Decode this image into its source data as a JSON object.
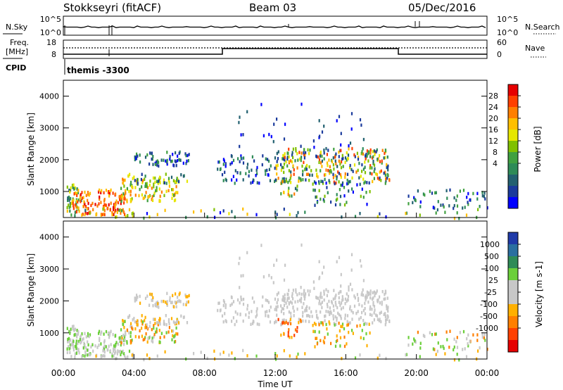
{
  "header": {
    "station": "Stokkseyri (fitACF)",
    "beam": "Beam 03",
    "date": "05/Dec/2016"
  },
  "aux_panels": {
    "nsky_label": "N.Sky",
    "nsearch_label": "N.Search",
    "freq_label_1": "Freq.",
    "freq_label_2": "[MHz]",
    "nave_label": "Nave",
    "cpid_label": "CPID",
    "cpid_value": "themis -3300",
    "nsky_ticks": [
      "10^5",
      "10^0"
    ],
    "nsearch_ticks": [
      "10^5",
      "10^0"
    ],
    "freq_ticks": [
      "18",
      "8"
    ],
    "nave_ticks": [
      "60",
      "0"
    ]
  },
  "chart_data": [
    {
      "type": "heatmap",
      "name": "power",
      "ylabel": "Slant Range [km]",
      "xlabel": "Time UT",
      "xlim": [
        "00:00",
        "24:00"
      ],
      "ylim": [
        180,
        4500
      ],
      "x_ticks": [
        "00:00",
        "04:00",
        "08:00",
        "12:00",
        "16:00",
        "20:00",
        "00:00"
      ],
      "y_ticks": [
        "4000",
        "3000",
        "2000",
        "1000"
      ],
      "colorbar": {
        "label": "Power [dB]",
        "ticks": [
          "28",
          "24",
          "20",
          "16",
          "12",
          "8",
          "4"
        ],
        "colors": [
          "#e60000",
          "#ff4000",
          "#ff7f00",
          "#ffbf00",
          "#e6e600",
          "#80c000",
          "#40a040",
          "#2e8b57",
          "#226070",
          "#1a3a9c",
          "#0000ff"
        ]
      }
    },
    {
      "type": "heatmap",
      "name": "velocity",
      "ylabel": "Slant Range [km]",
      "xlabel": "Time UT",
      "xlim": [
        "00:00",
        "24:00"
      ],
      "ylim": [
        180,
        4500
      ],
      "x_ticks": [
        "00:00",
        "04:00",
        "08:00",
        "12:00",
        "16:00",
        "20:00",
        "00:00"
      ],
      "y_ticks": [
        "4000",
        "3000",
        "2000",
        "1000"
      ],
      "colorbar": {
        "label": "Velocity [m s-1]",
        "ticks": [
          "1000",
          "500",
          "100",
          "25",
          "-25",
          "-100",
          "-500",
          "-1000"
        ],
        "colors": [
          "#1f3aa8",
          "#2a6fa0",
          "#2e8b57",
          "#6bcf3a",
          "#c8c8c8",
          "#c8c8c8",
          "#ffb000",
          "#ff7f00",
          "#ff4000",
          "#e60000"
        ]
      }
    }
  ],
  "time_axis": {
    "label": "Time UT"
  }
}
